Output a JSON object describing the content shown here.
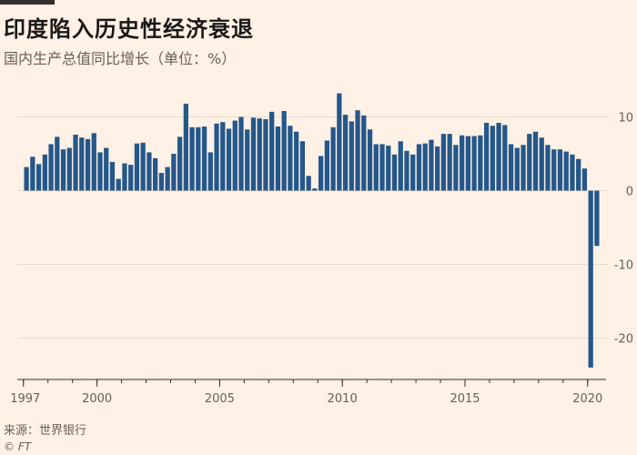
{
  "title": "印度陷入历史性经济衰退",
  "subtitle": "国内生产总值同比增长（单位：%）",
  "source": "来源：世界银行",
  "credit": "© FT",
  "colors": {
    "bar": "#24578a",
    "background": "#fff1e5",
    "grid": "#e6d9ce",
    "axis_text": "#66605c"
  },
  "chart_data": {
    "type": "bar",
    "ylabel": "",
    "ylim": [
      -24,
      12
    ],
    "yticks": [
      10,
      0,
      -10,
      -20
    ],
    "ytick_labels": [
      "10",
      "0",
      "-10",
      "-20"
    ],
    "xtick_labels": [
      "1997",
      "2000",
      "2005",
      "2010",
      "2015",
      "2020"
    ],
    "xtick_years": [
      1997,
      2000,
      2005,
      2010,
      2015,
      2020
    ],
    "xrange_years": [
      1996.75,
      2020.75
    ],
    "grid": true,
    "first_period": "1997-Q1",
    "last_period": "2020-Q2",
    "values": [
      3.2,
      4.6,
      3.6,
      4.9,
      6.3,
      7.3,
      5.6,
      5.8,
      7.6,
      7.2,
      7.0,
      7.8,
      5.2,
      5.8,
      3.9,
      1.6,
      3.7,
      3.5,
      6.4,
      6.5,
      5.2,
      4.4,
      2.4,
      3.2,
      5.0,
      7.3,
      11.8,
      8.6,
      8.6,
      8.7,
      5.2,
      9.1,
      9.3,
      8.4,
      9.5,
      10.0,
      8.3,
      9.9,
      9.8,
      9.7,
      10.7,
      8.7,
      10.8,
      8.8,
      8.0,
      6.7,
      2.0,
      0.3,
      4.7,
      6.8,
      8.6,
      13.2,
      10.3,
      9.4,
      10.9,
      10.2,
      8.3,
      6.3,
      6.3,
      6.1,
      4.9,
      6.7,
      5.4,
      4.9,
      6.3,
      6.4,
      6.9,
      6.0,
      7.7,
      7.7,
      6.2,
      7.5,
      7.4,
      7.4,
      7.5,
      9.2,
      8.8,
      9.2,
      8.9,
      6.3,
      5.8,
      6.2,
      7.7,
      8.0,
      7.2,
      6.2,
      5.6,
      5.6,
      5.3,
      4.9,
      4.3,
      3.0,
      -24.0,
      -7.5
    ]
  }
}
